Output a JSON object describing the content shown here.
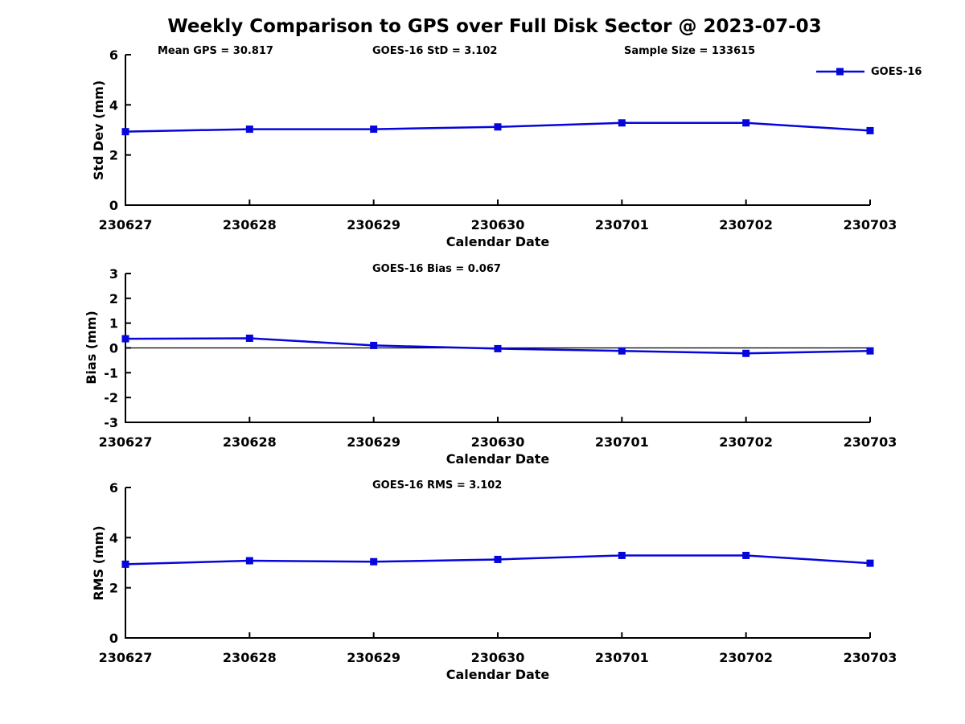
{
  "title": "Weekly Comparison to GPS over Full Disk Sector @ 2023-07-03",
  "annotations": {
    "mean_gps": "Mean GPS = 30.817",
    "goes16_std": "GOES-16 StD = 3.102",
    "sample_size": "Sample Size = 133615"
  },
  "legend": {
    "label": "GOES-16",
    "marker": "filled-square",
    "position": "northeast-outside"
  },
  "colors": {
    "series": "#0606DC",
    "axis": "#000000",
    "background": "#ffffff"
  },
  "chart_data": [
    {
      "type": "line",
      "panel": "std-dev",
      "title": "",
      "x": [
        "230627",
        "230628",
        "230629",
        "230630",
        "230701",
        "230702",
        "230703"
      ],
      "series": [
        {
          "name": "GOES-16",
          "marker": "square",
          "values": [
            2.93,
            3.03,
            3.03,
            3.12,
            3.28,
            3.28,
            2.97
          ]
        }
      ],
      "xlabel": "Calendar Date",
      "ylabel": "Std Dev (mm)",
      "ylim": [
        0,
        6
      ],
      "yticks": [
        0,
        2,
        4,
        6
      ],
      "grid": false,
      "zero_line": false
    },
    {
      "type": "line",
      "panel": "bias",
      "title": "GOES-16 Bias  = 0.067",
      "x": [
        "230627",
        "230628",
        "230629",
        "230630",
        "230701",
        "230702",
        "230703"
      ],
      "series": [
        {
          "name": "GOES-16",
          "marker": "square",
          "values": [
            0.37,
            0.39,
            0.1,
            -0.03,
            -0.12,
            -0.22,
            -0.12
          ]
        }
      ],
      "xlabel": "Calendar Date",
      "ylabel": "Bias (mm)",
      "ylim": [
        -3,
        3
      ],
      "yticks": [
        -3,
        -2,
        -1,
        0,
        1,
        2,
        3
      ],
      "grid": false,
      "zero_line": true
    },
    {
      "type": "line",
      "panel": "rms",
      "title": "GOES-16 RMS = 3.102",
      "x": [
        "230627",
        "230628",
        "230629",
        "230630",
        "230701",
        "230702",
        "230703"
      ],
      "series": [
        {
          "name": "GOES-16",
          "marker": "square",
          "values": [
            2.94,
            3.08,
            3.04,
            3.13,
            3.29,
            3.29,
            2.98
          ]
        }
      ],
      "xlabel": "Calendar Date",
      "ylabel": "RMS (mm)",
      "ylim": [
        0,
        6
      ],
      "yticks": [
        0,
        2,
        4,
        6
      ],
      "grid": false,
      "zero_line": false
    }
  ]
}
